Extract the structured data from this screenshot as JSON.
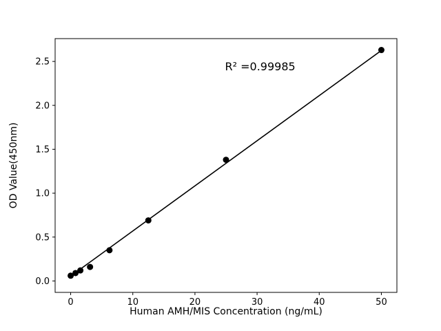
{
  "figure": {
    "background": "#ffffff"
  },
  "chart_data": {
    "type": "scatter",
    "title": "",
    "xlabel": "Human AMH/MIS Concentration (ng/mL)",
    "ylabel": "OD Value(450nm)",
    "annotation": "R² =0.99985",
    "annotation_xy": [
      30.5,
      2.4
    ],
    "x": [
      0,
      0.78,
      1.56,
      3.12,
      6.25,
      12.5,
      25,
      50
    ],
    "y": [
      0.06,
      0.09,
      0.12,
      0.16,
      0.35,
      0.69,
      1.38,
      2.63
    ],
    "fit_line": {
      "x": [
        0,
        50
      ],
      "y": [
        0.055,
        2.625
      ]
    },
    "xlim": [
      -2.5,
      52.5
    ],
    "ylim": [
      -0.13,
      2.76
    ],
    "xticks": [
      0,
      10,
      20,
      30,
      40,
      50
    ],
    "yticks": [
      0.0,
      0.5,
      1.0,
      1.5,
      2.0,
      2.5
    ],
    "marker_color": "#000000",
    "line_color": "#000000",
    "axis_color": "#000000",
    "grid": false,
    "legend": null
  }
}
